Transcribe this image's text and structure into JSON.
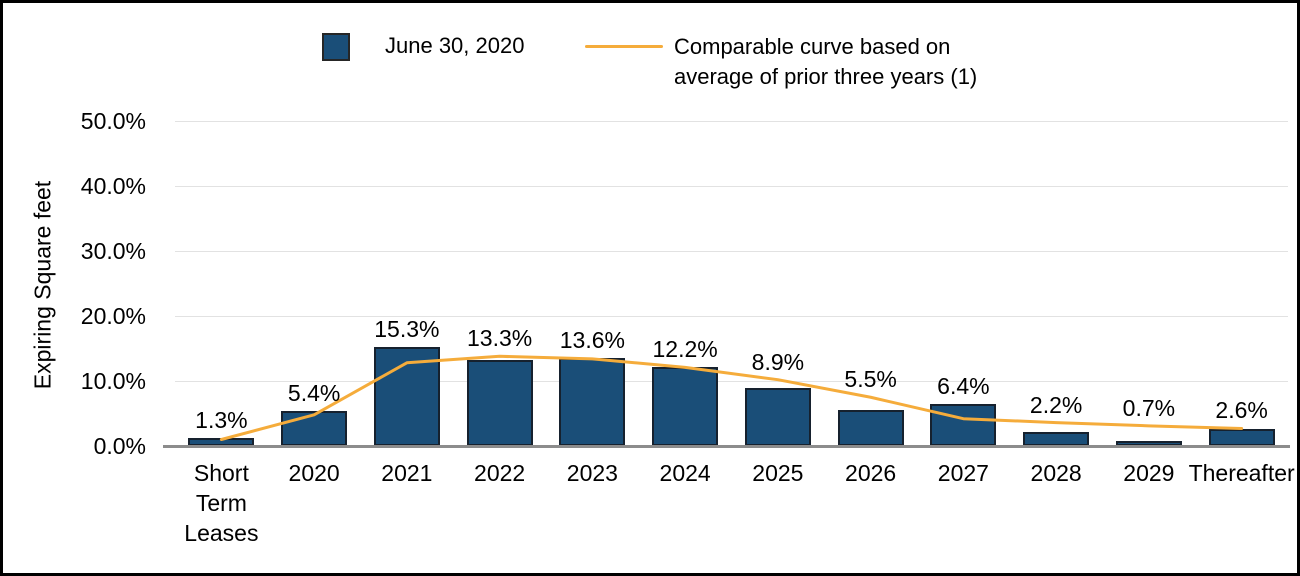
{
  "colors": {
    "bar_fill": "#1a4e78",
    "bar_border": "#16212e",
    "line": "#f5ac3b",
    "gridline": "#e2e2e2",
    "axis_line": "#8c8c8c",
    "text": "#000000"
  },
  "y_axis": {
    "title": "Expiring Square feet",
    "ticks": [
      "50.0%",
      "40.0%",
      "30.0%",
      "20.0%",
      "10.0%",
      "0.0%"
    ]
  },
  "chart_data": {
    "type": "bar",
    "title": "",
    "xlabel": "",
    "ylabel": "Expiring Square feet",
    "ylim": [
      0,
      50
    ],
    "grid": true,
    "legend_position": "top",
    "categories": [
      "Short Term Leases",
      "2020",
      "2021",
      "2022",
      "2023",
      "2024",
      "2025",
      "2026",
      "2027",
      "2028",
      "2029",
      "Thereafter"
    ],
    "series": [
      {
        "name": "June 30, 2020",
        "type": "bar",
        "color": "#1a4e78",
        "values": [
          1.3,
          5.4,
          15.3,
          13.3,
          13.6,
          12.2,
          8.9,
          5.5,
          6.4,
          2.2,
          0.7,
          2.6
        ],
        "labels": [
          "1.3%",
          "5.4%",
          "15.3%",
          "13.3%",
          "13.6%",
          "12.2%",
          "8.9%",
          "5.5%",
          "6.4%",
          "2.2%",
          "0.7%",
          "2.6%"
        ]
      },
      {
        "name": "Comparable curve based on average of prior three years (1)",
        "type": "line",
        "color": "#f5ac3b",
        "values": [
          1.0,
          4.8,
          12.8,
          13.8,
          13.4,
          12.1,
          10.2,
          7.5,
          4.2,
          3.6,
          3.1,
          2.7
        ]
      }
    ]
  }
}
